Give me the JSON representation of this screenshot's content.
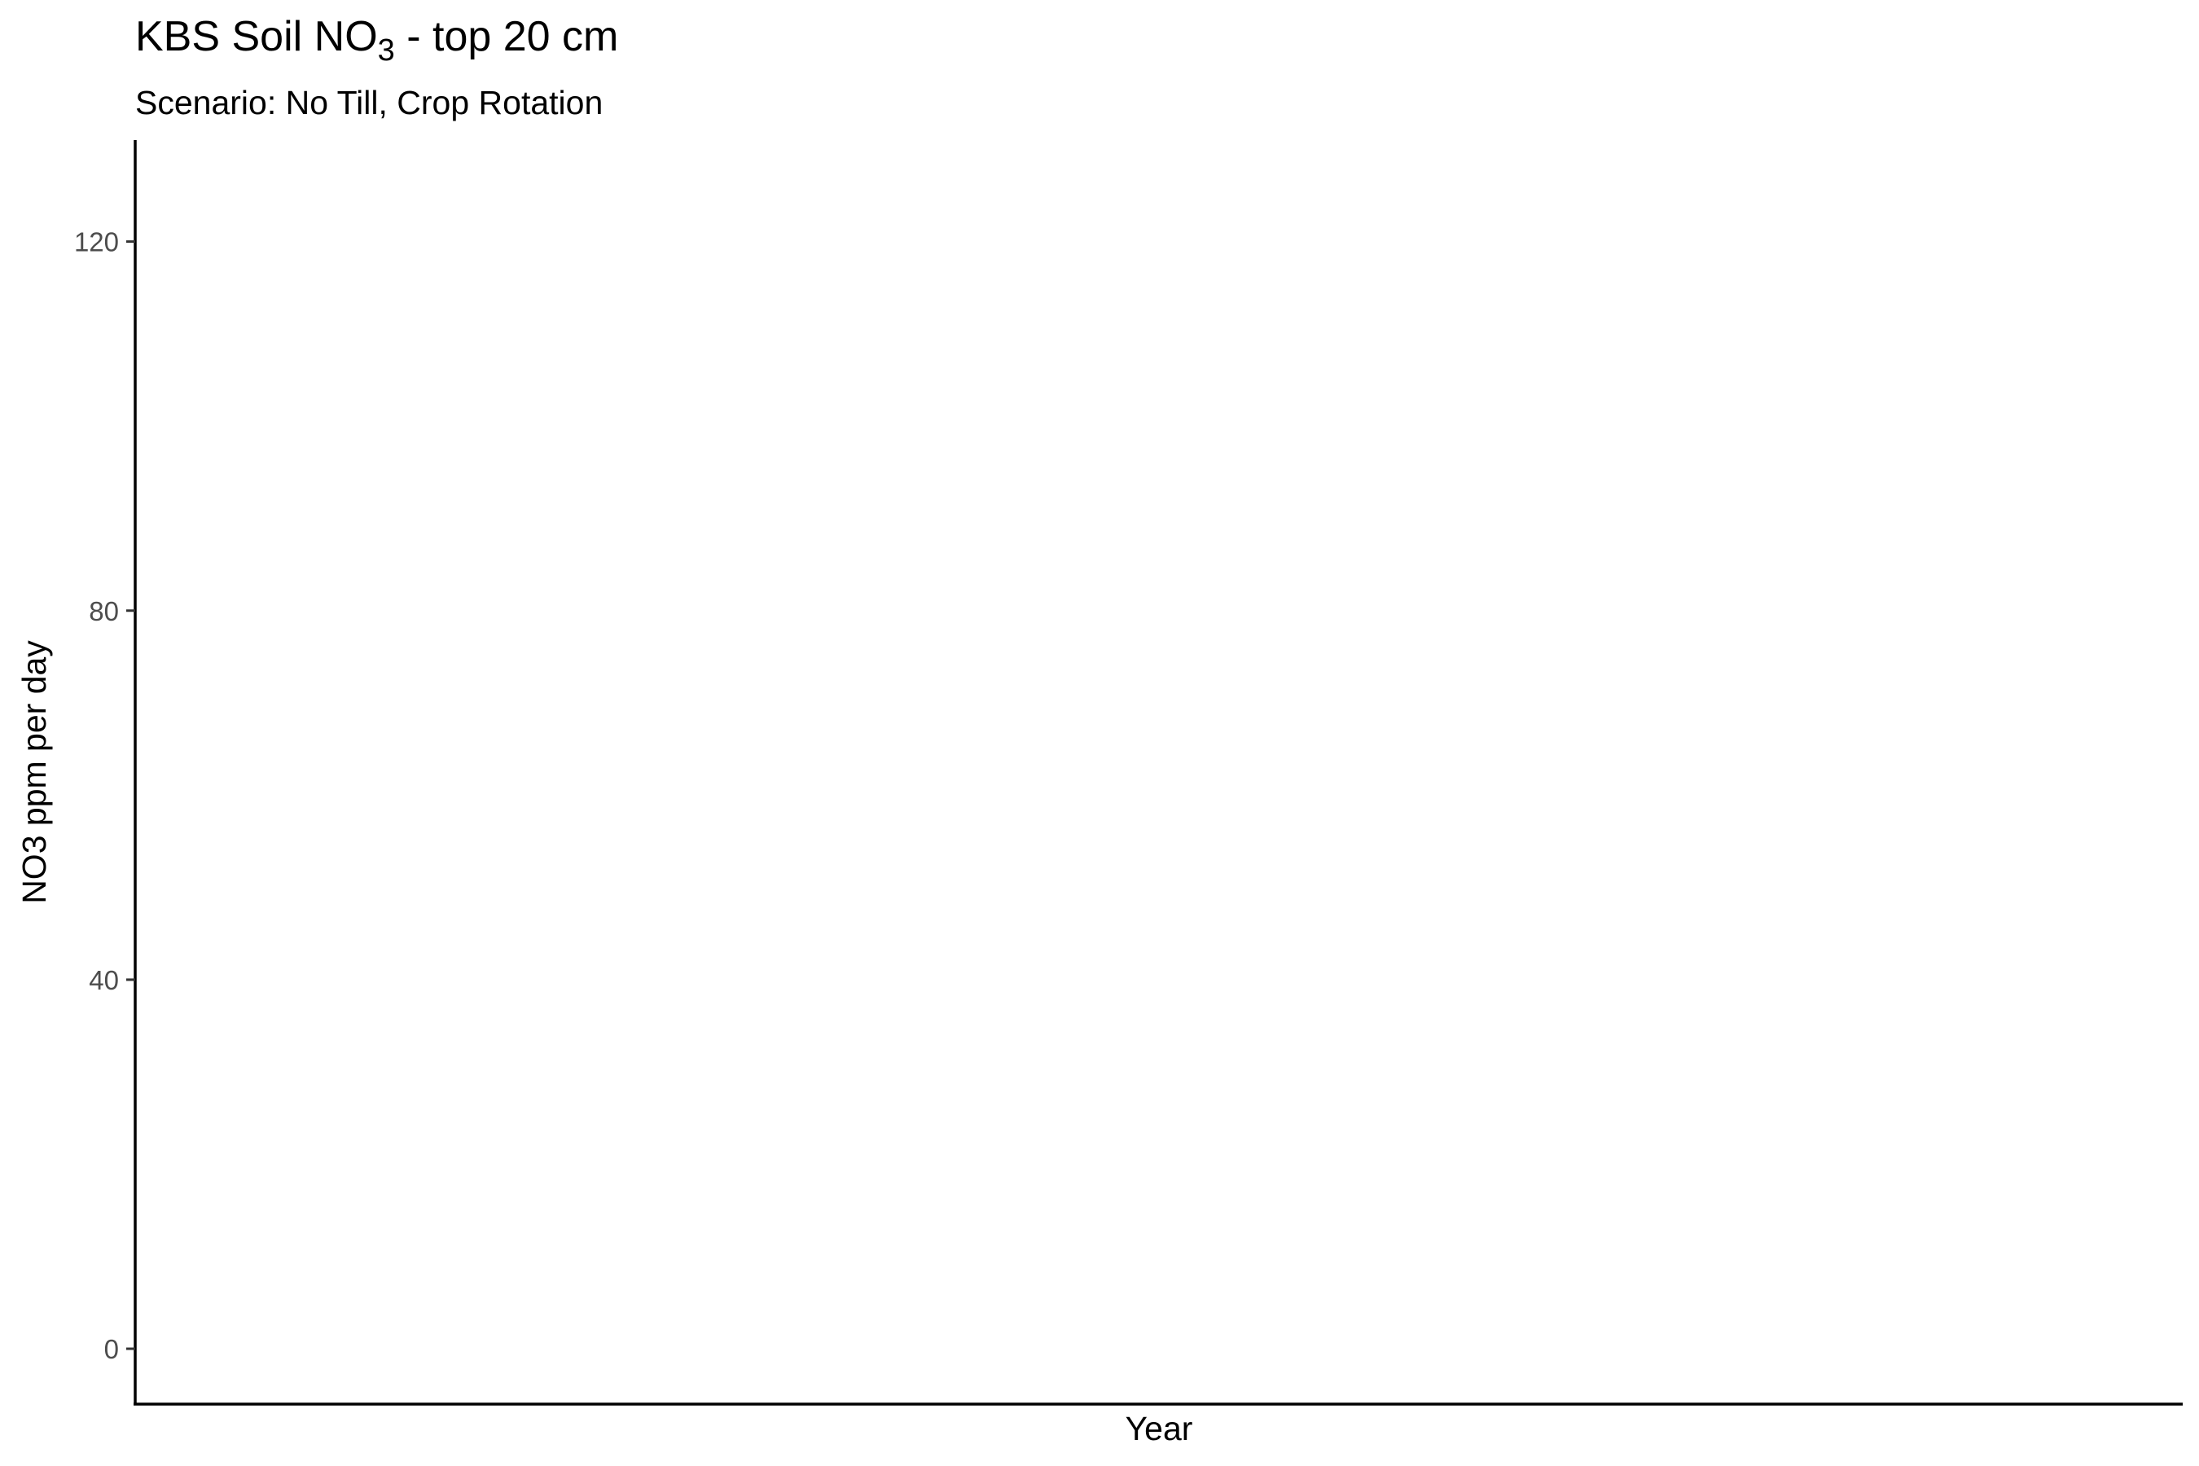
{
  "chart_data": {
    "type": "line",
    "title": {
      "prefix": "KBS Soil NO",
      "subscript": "3",
      "suffix": " - top 20 cm"
    },
    "subtitle": "Scenario: No Till, Crop Rotation",
    "xlabel": "Year",
    "ylabel": "NO3 ppm per day",
    "y_ticks": [
      0,
      40,
      80,
      120
    ],
    "y_tick_labels": [
      "0",
      "40",
      "80",
      "120"
    ],
    "ylim": [
      -6,
      131
    ],
    "x_ticks": [],
    "series": [],
    "grid": false,
    "legend": "none",
    "colors": {
      "axis": "#000000",
      "tick_label": "#4d4d4d",
      "tick_mark": "#333333",
      "background": "#ffffff"
    }
  }
}
